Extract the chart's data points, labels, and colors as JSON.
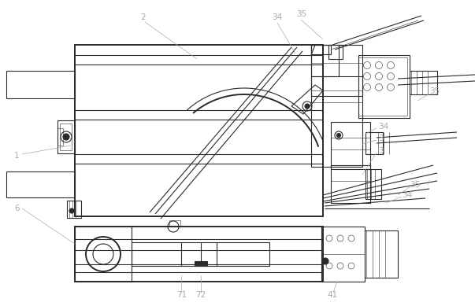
{
  "bg_color": "#ffffff",
  "line_color": "#2a2a2a",
  "label_color": "#aaaaaa",
  "lw": 0.8,
  "lw_thick": 1.4,
  "lw_thin": 0.4,
  "fig_width": 6.03,
  "fig_height": 3.89,
  "dpi": 100
}
